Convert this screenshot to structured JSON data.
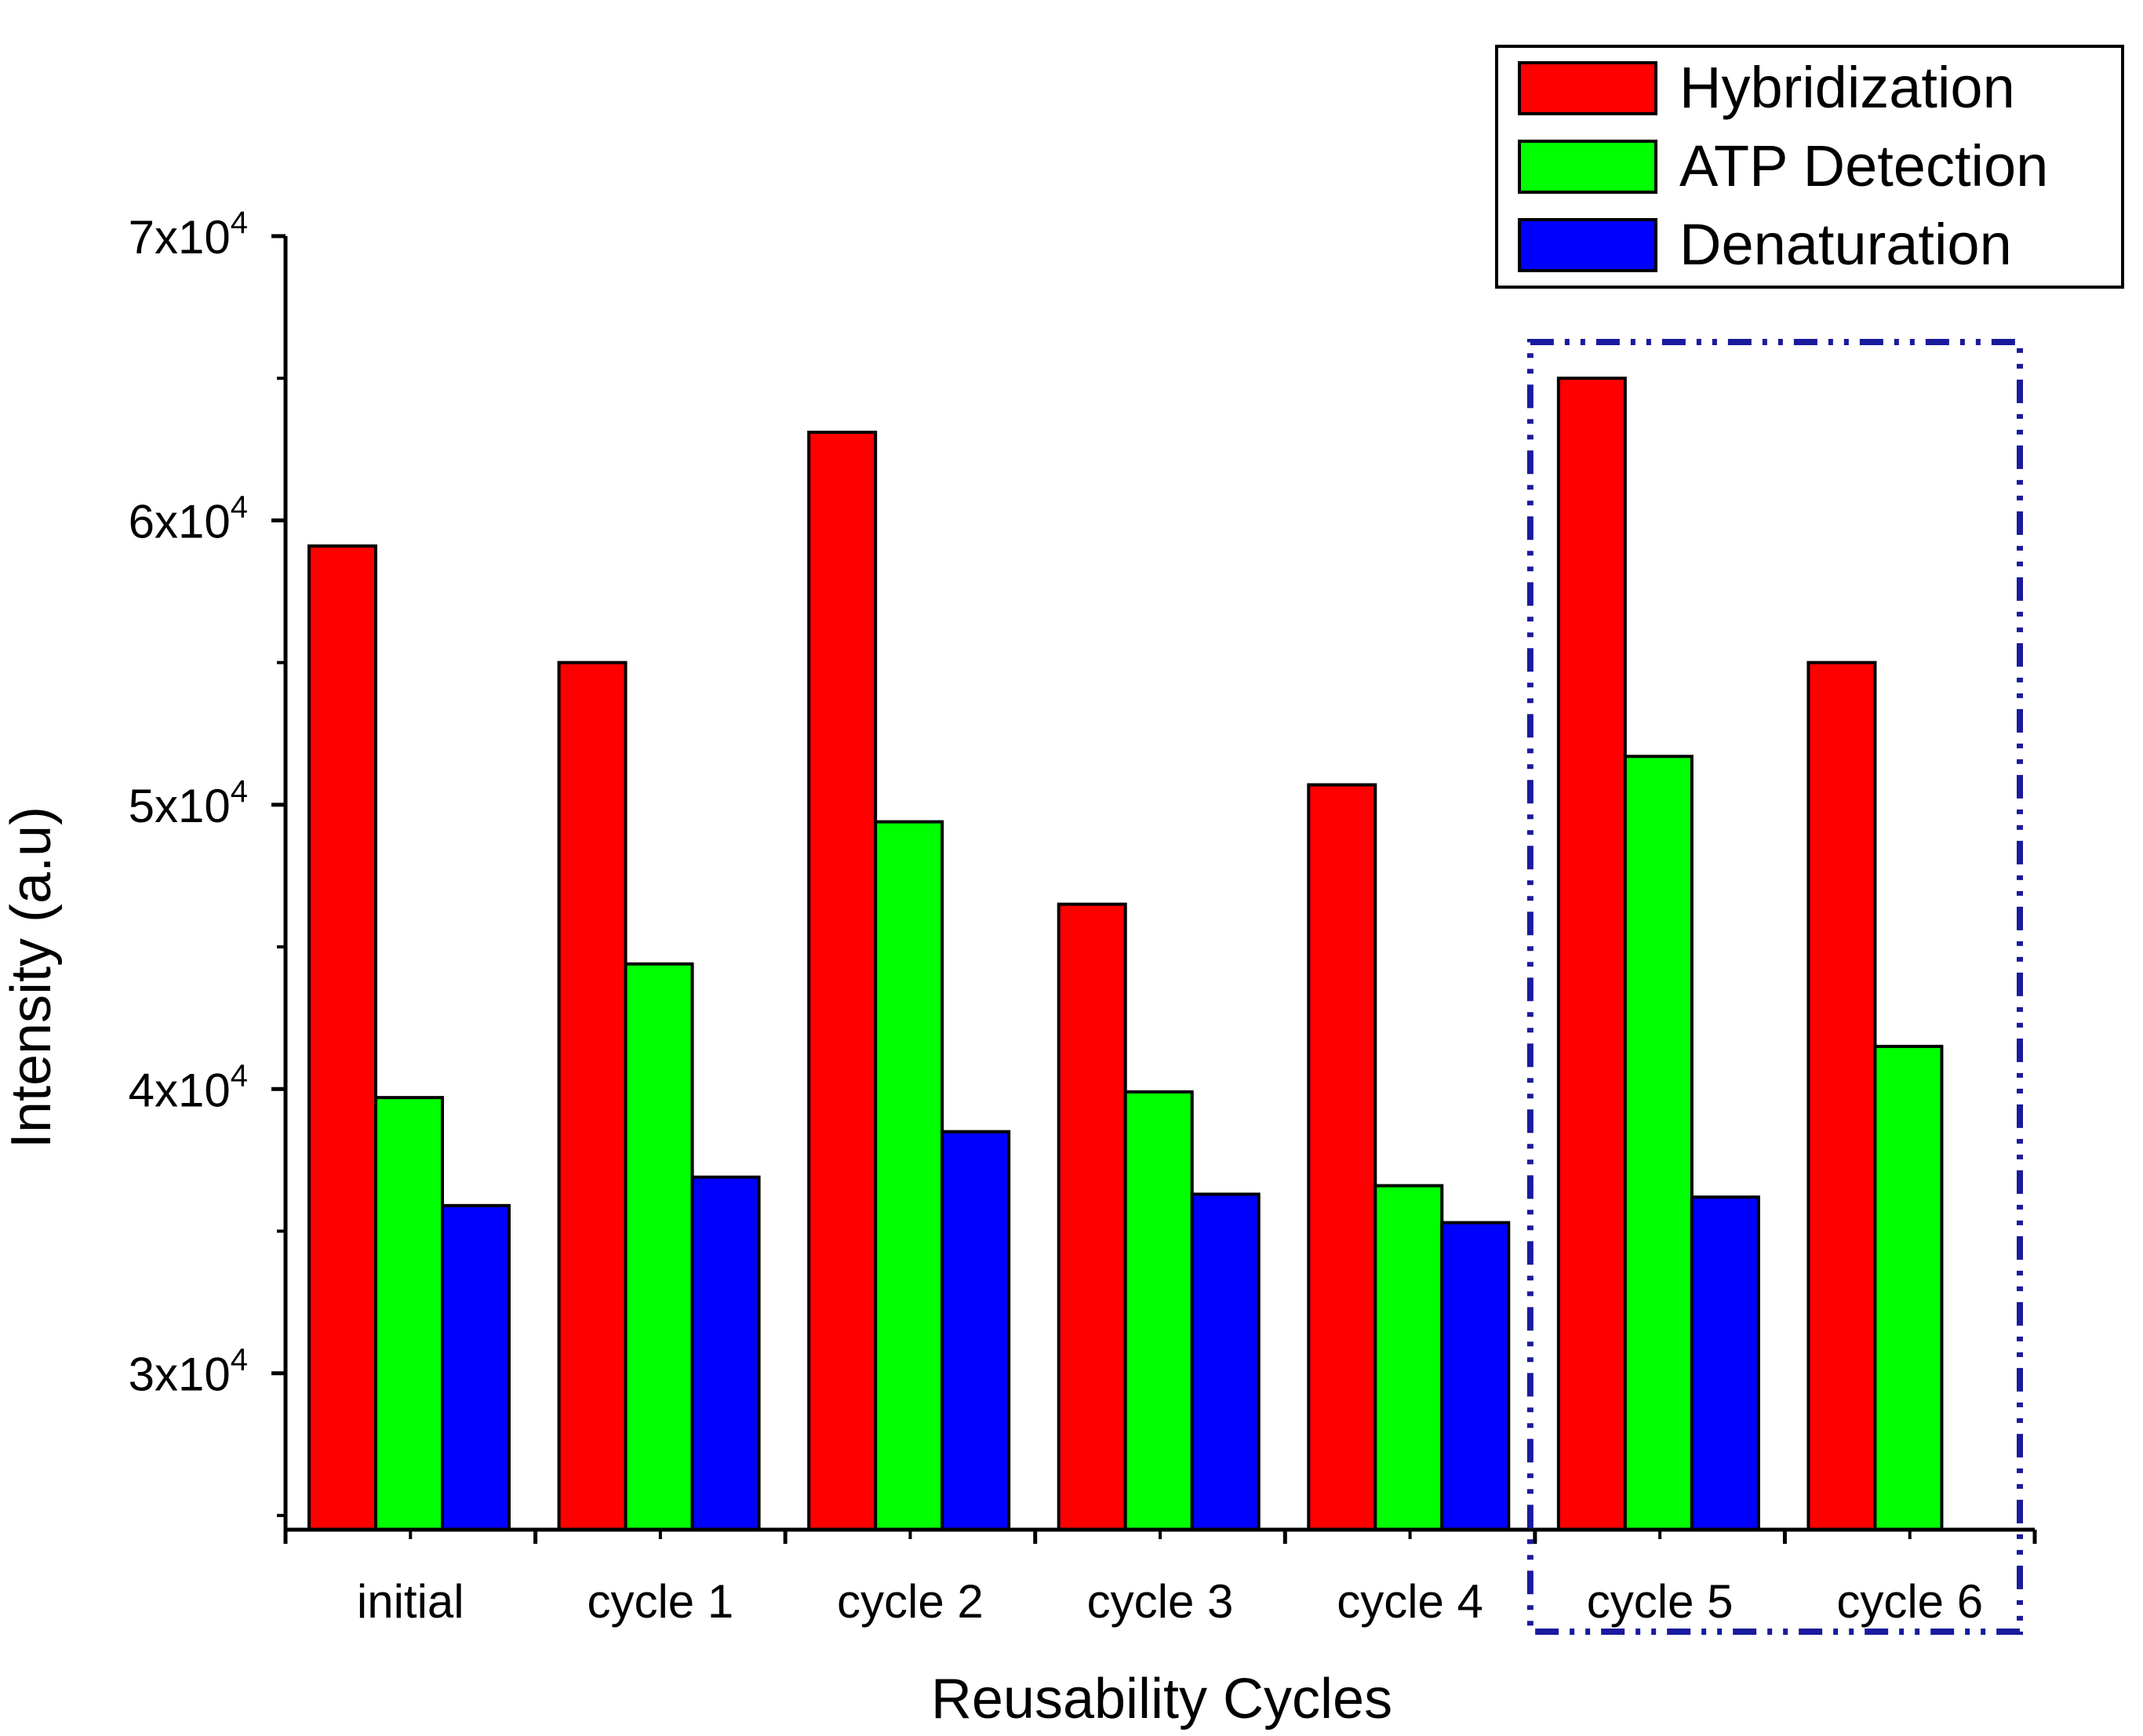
{
  "chart_data": {
    "type": "bar",
    "title": "",
    "xlabel": "Reusability Cycles",
    "ylabel": "Intensity (a.u)",
    "ylim": [
      24500,
      70000
    ],
    "categories": [
      "initial",
      "cycle 1",
      "cycle 2",
      "cycle 3",
      "cycle 4",
      "cycle 5",
      "cycle 6"
    ],
    "yticks": [
      {
        "value": 30000,
        "mantissa": "3x10",
        "exponent": "4"
      },
      {
        "value": 40000,
        "mantissa": "4x10",
        "exponent": "4"
      },
      {
        "value": 50000,
        "mantissa": "5x10",
        "exponent": "4"
      },
      {
        "value": 60000,
        "mantissa": "6x10",
        "exponent": "4"
      },
      {
        "value": 70000,
        "mantissa": "7x10",
        "exponent": "4"
      }
    ],
    "series": [
      {
        "name": "Hybridization",
        "color": "#ff0000",
        "values": [
          59100,
          55000,
          63100,
          46500,
          50700,
          65000,
          55000
        ]
      },
      {
        "name": "ATP Detection",
        "color": "#00ff00",
        "values": [
          39700,
          44400,
          49400,
          39900,
          36600,
          51700,
          41500
        ]
      },
      {
        "name": "Denaturation",
        "color": "#0000ff",
        "values": [
          35900,
          36900,
          38500,
          36300,
          35300,
          36200,
          null
        ]
      }
    ],
    "legend_position": "top-right",
    "highlight": {
      "from_category": "cycle 5",
      "to_category": "cycle 6",
      "style": "dash-dot",
      "color": "#1a1a9e"
    }
  }
}
